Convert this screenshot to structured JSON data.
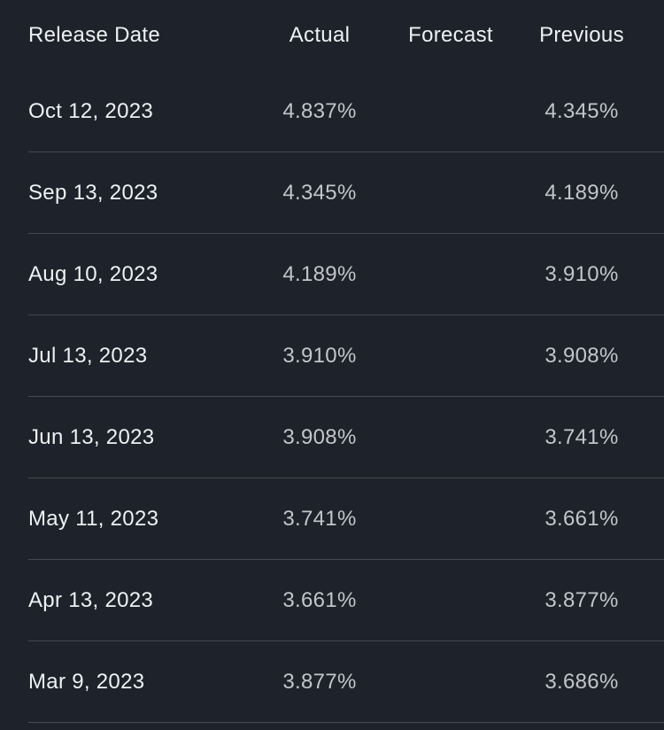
{
  "table": {
    "columns": [
      {
        "key": "date",
        "label": "Release Date"
      },
      {
        "key": "actual",
        "label": "Actual"
      },
      {
        "key": "forecast",
        "label": "Forecast"
      },
      {
        "key": "previous",
        "label": "Previous"
      }
    ],
    "rows": [
      {
        "date": "Oct 12, 2023",
        "actual": "4.837%",
        "forecast": "",
        "previous": "4.345%"
      },
      {
        "date": "Sep 13, 2023",
        "actual": "4.345%",
        "forecast": "",
        "previous": "4.189%"
      },
      {
        "date": "Aug 10, 2023",
        "actual": "4.189%",
        "forecast": "",
        "previous": "3.910%"
      },
      {
        "date": "Jul 13, 2023",
        "actual": "3.910%",
        "forecast": "",
        "previous": "3.908%"
      },
      {
        "date": "Jun 13, 2023",
        "actual": "3.908%",
        "forecast": "",
        "previous": "3.741%"
      },
      {
        "date": "May 11, 2023",
        "actual": "3.741%",
        "forecast": "",
        "previous": "3.661%"
      },
      {
        "date": "Apr 13, 2023",
        "actual": "3.661%",
        "forecast": "",
        "previous": "3.877%"
      },
      {
        "date": "Mar 9, 2023",
        "actual": "3.877%",
        "forecast": "",
        "previous": "3.686%"
      }
    ]
  },
  "colors": {
    "background": "#1e222a",
    "header_text": "#eef0f2",
    "date_text": "#eef0f2",
    "value_text": "#c3c5c9",
    "divider": "#45484f"
  }
}
